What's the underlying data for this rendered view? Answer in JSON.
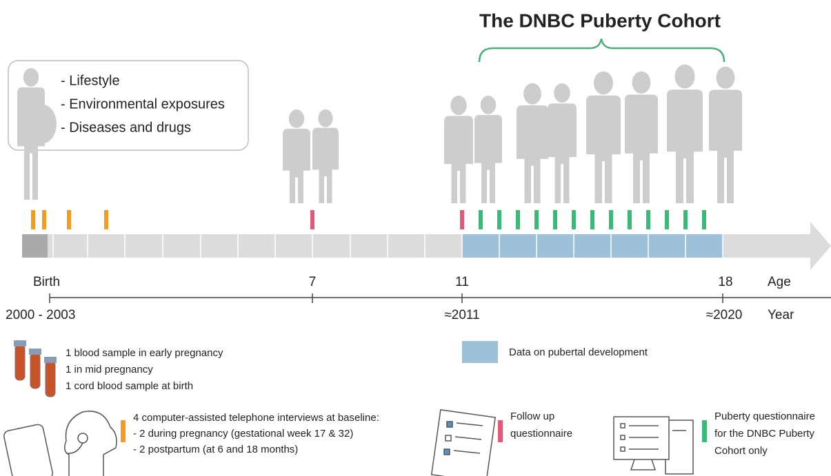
{
  "title": "The DNBC Puberty Cohort",
  "topics": [
    "- Lifestyle",
    "- Environmental exposures",
    "- Diseases and drugs"
  ],
  "age_labels": {
    "birth": "Birth",
    "age7": "7",
    "age11": "11",
    "age18": "18",
    "axis": "Age"
  },
  "year_labels": {
    "start": "2000 - 2003",
    "y2011": "≈2011",
    "y2020": "≈2020",
    "axis": "Year"
  },
  "legend": {
    "blood": [
      "1 blood sample in early pregnancy",
      "1 in mid pregnancy",
      "1 cord blood sample at birth"
    ],
    "puberty_data": "Data on pubertal development",
    "interviews": [
      "4 computer-assisted telephone interviews at baseline:",
      "- 2 during pregnancy (gestational week 17 & 32)",
      "- 2 postpartum (at 6 and 18 months)"
    ],
    "follow_up": [
      "Follow up",
      "questionnaire"
    ],
    "puberty_questionnaire": [
      "Puberty questionnaire",
      "for the DNBC Puberty",
      "Cohort only"
    ]
  }
}
